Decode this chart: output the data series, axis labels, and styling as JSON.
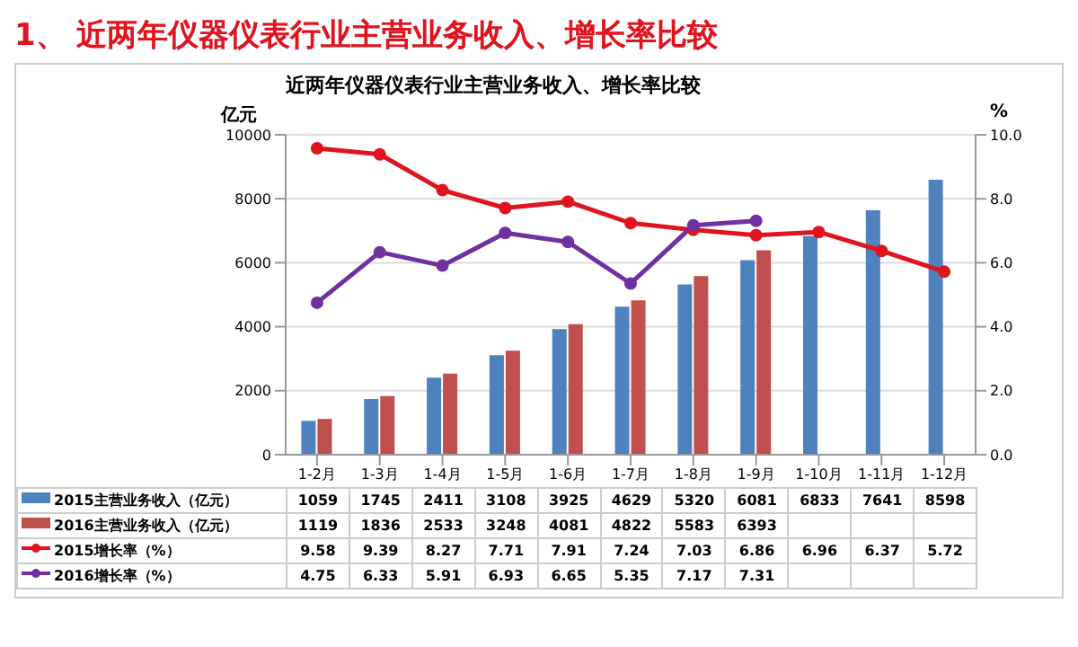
{
  "chart_data": {
    "type": "bar",
    "title": "1、 近两年仪器仪表行业主营业务收入、增长率比较",
    "subtitle": "近两年仪器仪表行业主营业务收入、增长率比较",
    "ylabel": "亿元",
    "y2label": "%",
    "categories": [
      "1-2月",
      "1-3月",
      "1-4月",
      "1-5月",
      "1-6月",
      "1-7月",
      "1-8月",
      "1-9月",
      "1-10月",
      "1-11月",
      "1-12月"
    ],
    "series": [
      {
        "name": "2015主营业务收入（亿元）",
        "color": "#4f81bd",
        "values": [
          1059,
          1745,
          2411,
          3108,
          3925,
          4629,
          5320,
          6081,
          6833,
          7641,
          8598
        ]
      },
      {
        "name": "2016主营业务收入（亿元）",
        "color": "#c0504d",
        "values": [
          1119,
          1836,
          2533,
          3248,
          4081,
          4822,
          5583,
          6393,
          null,
          null,
          null
        ]
      },
      {
        "name": "2015增长率（%）",
        "type": "line",
        "axis": "y2",
        "color": "#e0141e",
        "values": [
          9.58,
          9.39,
          8.27,
          7.71,
          7.91,
          7.24,
          7.03,
          6.86,
          6.96,
          6.37,
          5.72
        ]
      },
      {
        "name": "2016增长率（%）",
        "type": "line",
        "axis": "y2",
        "color": "#7030a0",
        "values": [
          4.75,
          6.33,
          5.91,
          6.93,
          6.65,
          5.35,
          7.17,
          7.31,
          null,
          null,
          null
        ]
      }
    ],
    "ylim": [
      0,
      10000
    ],
    "yticks": [
      0,
      2000,
      4000,
      6000,
      8000,
      10000
    ],
    "y2lim": [
      0,
      10
    ],
    "y2ticks": [
      {
        "value": 0,
        "label": "0.0"
      },
      {
        "value": 2,
        "label": "2.0"
      },
      {
        "value": 4,
        "label": "4.0"
      },
      {
        "value": 6,
        "label": "6.0"
      },
      {
        "value": 8,
        "label": "8.0"
      },
      {
        "value": 10,
        "label": "10.0"
      }
    ],
    "grid": "y",
    "marker": "circle",
    "line_style": "solid",
    "data_labels": true,
    "legend": "bottom left"
  }
}
